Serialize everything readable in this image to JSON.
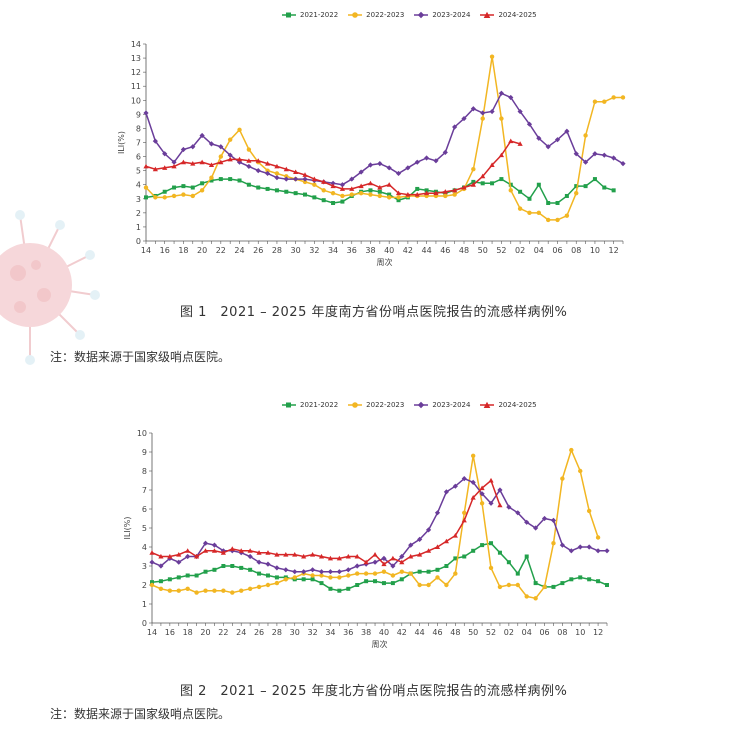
{
  "weeks": [
    "14",
    "15",
    "16",
    "17",
    "18",
    "19",
    "20",
    "21",
    "22",
    "23",
    "24",
    "25",
    "26",
    "27",
    "28",
    "29",
    "30",
    "31",
    "32",
    "33",
    "34",
    "35",
    "36",
    "37",
    "38",
    "39",
    "40",
    "41",
    "42",
    "43",
    "44",
    "45",
    "46",
    "47",
    "48",
    "49",
    "50",
    "51",
    "52",
    "01",
    "02",
    "03",
    "04",
    "05",
    "06",
    "07",
    "08",
    "09",
    "10",
    "11",
    "12",
    "13"
  ],
  "series_meta": [
    {
      "name": "2021-2022",
      "color": "#22a04b",
      "marker": "square"
    },
    {
      "name": "2022-2023",
      "color": "#f2b622",
      "marker": "circle"
    },
    {
      "name": "2023-2024",
      "color": "#6a3d9a",
      "marker": "diamond"
    },
    {
      "name": "2024-2025",
      "color": "#d62728",
      "marker": "triangle"
    }
  ],
  "chart_data": [
    {
      "type": "line",
      "xlabel": "周次",
      "ylabel": "ILI(%)",
      "ylim": [
        0,
        14
      ],
      "yticks": [
        0,
        1,
        2,
        3,
        4,
        5,
        6,
        7,
        8,
        9,
        10,
        11,
        12,
        13,
        14
      ],
      "xticks": [
        "14",
        "16",
        "18",
        "20",
        "22",
        "24",
        "26",
        "28",
        "30",
        "32",
        "34",
        "36",
        "38",
        "40",
        "42",
        "44",
        "46",
        "48",
        "50",
        "52",
        "02",
        "04",
        "06",
        "08",
        "10",
        "12"
      ],
      "grid": false,
      "legend": "top",
      "series": [
        {
          "name": "2021-2022",
          "values": [
            3.1,
            3.2,
            3.5,
            3.8,
            3.9,
            3.8,
            4.1,
            4.3,
            4.4,
            4.4,
            4.3,
            4.0,
            3.8,
            3.7,
            3.6,
            3.5,
            3.4,
            3.3,
            3.1,
            2.9,
            2.7,
            2.8,
            3.2,
            3.5,
            3.6,
            3.5,
            3.3,
            2.9,
            3.1,
            3.7,
            3.6,
            3.5,
            3.4,
            3.6,
            3.8,
            4.2,
            4.1,
            4.1,
            4.4,
            4.0,
            3.5,
            3.0,
            4.0,
            2.7,
            2.7,
            3.2,
            3.9,
            3.9,
            4.4,
            3.8,
            3.6
          ]
        },
        {
          "name": "2022-2023",
          "values": [
            3.8,
            3.1,
            3.1,
            3.2,
            3.3,
            3.2,
            3.6,
            4.5,
            6.0,
            7.2,
            7.9,
            6.5,
            5.6,
            5.0,
            4.8,
            4.6,
            4.4,
            4.2,
            4.0,
            3.6,
            3.4,
            3.2,
            3.3,
            3.4,
            3.3,
            3.2,
            3.1,
            3.1,
            3.2,
            3.2,
            3.2,
            3.2,
            3.2,
            3.3,
            3.7,
            5.1,
            8.7,
            13.1,
            8.7,
            3.6,
            2.3,
            2.0,
            2.0,
            1.5,
            1.5,
            1.8,
            3.4,
            7.5,
            9.9,
            9.9,
            10.2,
            10.2
          ]
        },
        {
          "name": "2023-2024",
          "values": [
            9.1,
            7.1,
            6.2,
            5.6,
            6.5,
            6.7,
            7.5,
            6.9,
            6.7,
            6.1,
            5.6,
            5.3,
            5.0,
            4.8,
            4.5,
            4.4,
            4.4,
            4.4,
            4.3,
            4.2,
            4.1,
            4.0,
            4.4,
            4.9,
            5.4,
            5.5,
            5.2,
            4.8,
            5.2,
            5.6,
            5.9,
            5.7,
            6.3,
            8.1,
            8.7,
            9.4,
            9.1,
            9.2,
            10.5,
            10.2,
            9.2,
            8.3,
            7.3,
            6.7,
            7.2,
            7.8,
            6.2,
            5.6,
            6.2,
            6.1,
            5.9,
            5.5
          ]
        },
        {
          "name": "2024-2025",
          "values": [
            5.3,
            5.1,
            5.2,
            5.3,
            5.6,
            5.5,
            5.6,
            5.4,
            5.6,
            5.8,
            5.8,
            5.7,
            5.7,
            5.5,
            5.3,
            5.1,
            4.9,
            4.7,
            4.4,
            4.2,
            3.9,
            3.7,
            3.7,
            3.9,
            4.1,
            3.8,
            4.0,
            3.4,
            3.3,
            3.3,
            3.4,
            3.4,
            3.5,
            3.6,
            3.8,
            4.0,
            4.6,
            5.4,
            6.1,
            7.1,
            6.9
          ]
        }
      ]
    },
    {
      "type": "line",
      "xlabel": "周次",
      "ylabel": "ILI(%)",
      "ylim": [
        0,
        10
      ],
      "yticks": [
        0,
        1,
        2,
        3,
        4,
        5,
        6,
        7,
        8,
        9,
        10
      ],
      "xticks": [
        "14",
        "16",
        "18",
        "20",
        "22",
        "24",
        "26",
        "28",
        "30",
        "32",
        "34",
        "36",
        "38",
        "40",
        "42",
        "44",
        "46",
        "48",
        "50",
        "52",
        "02",
        "04",
        "06",
        "08",
        "10",
        "12"
      ],
      "grid": false,
      "legend": "top",
      "series": [
        {
          "name": "2021-2022",
          "values": [
            2.15,
            2.2,
            2.3,
            2.4,
            2.5,
            2.5,
            2.7,
            2.8,
            3.0,
            3.0,
            2.9,
            2.8,
            2.6,
            2.5,
            2.4,
            2.4,
            2.3,
            2.3,
            2.3,
            2.1,
            1.8,
            1.7,
            1.8,
            2.0,
            2.2,
            2.2,
            2.1,
            2.1,
            2.3,
            2.6,
            2.7,
            2.7,
            2.8,
            3.0,
            3.4,
            3.5,
            3.8,
            4.1,
            4.2,
            3.7,
            3.2,
            2.6,
            3.5,
            2.1,
            1.9,
            1.9,
            2.1,
            2.3,
            2.4,
            2.3,
            2.2,
            2.0
          ]
        },
        {
          "name": "2022-2023",
          "values": [
            2.0,
            1.8,
            1.7,
            1.7,
            1.8,
            1.6,
            1.7,
            1.7,
            1.7,
            1.6,
            1.7,
            1.8,
            1.9,
            2.0,
            2.1,
            2.3,
            2.4,
            2.6,
            2.5,
            2.5,
            2.4,
            2.4,
            2.5,
            2.6,
            2.6,
            2.6,
            2.7,
            2.5,
            2.7,
            2.6,
            2.0,
            2.0,
            2.4,
            2.0,
            2.6,
            5.8,
            8.8,
            6.3,
            2.9,
            1.9,
            2.0,
            2.0,
            1.4,
            1.3,
            1.9,
            4.2,
            7.6,
            9.1,
            8.0,
            5.9,
            4.5
          ]
        },
        {
          "name": "2023-2024",
          "values": [
            3.2,
            3.0,
            3.4,
            3.2,
            3.5,
            3.5,
            4.2,
            4.1,
            3.8,
            3.8,
            3.7,
            3.5,
            3.2,
            3.1,
            2.9,
            2.8,
            2.7,
            2.7,
            2.8,
            2.7,
            2.7,
            2.7,
            2.8,
            3.0,
            3.1,
            3.2,
            3.4,
            3.0,
            3.5,
            4.1,
            4.4,
            4.9,
            5.8,
            6.9,
            7.2,
            7.6,
            7.4,
            6.8,
            6.3,
            7.0,
            6.1,
            5.8,
            5.3,
            5.0,
            5.5,
            5.4,
            4.1,
            3.8,
            4.0,
            4.0,
            3.8,
            3.8
          ]
        },
        {
          "name": "2024-2025",
          "values": [
            3.7,
            3.5,
            3.5,
            3.6,
            3.8,
            3.5,
            3.8,
            3.8,
            3.7,
            3.9,
            3.8,
            3.8,
            3.7,
            3.7,
            3.6,
            3.6,
            3.6,
            3.5,
            3.6,
            3.5,
            3.4,
            3.4,
            3.5,
            3.5,
            3.2,
            3.6,
            3.1,
            3.4,
            3.2,
            3.5,
            3.6,
            3.8,
            4.0,
            4.3,
            4.6,
            5.4,
            6.6,
            7.1,
            7.5,
            6.2
          ]
        }
      ]
    }
  ],
  "captions": {
    "fig1": "图 1　2021 – 2025 年度南方省份哨点医院报告的流感样病例%",
    "note1": "注：数据来源于国家级哨点医院。",
    "fig2": "图 2　2021 – 2025 年度北方省份哨点医院报告的流感样病例%",
    "note2": "注：数据来源于国家级哨点医院。"
  }
}
